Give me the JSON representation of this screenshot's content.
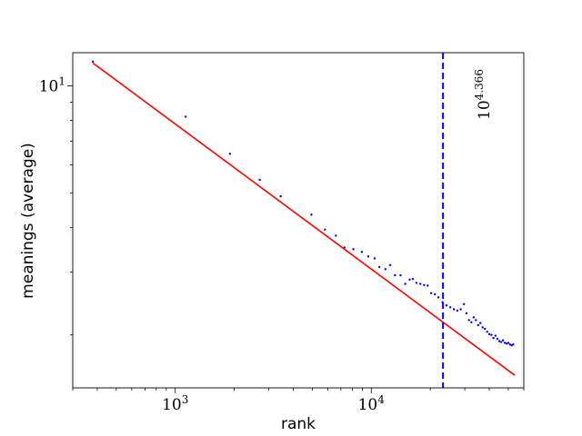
{
  "chart_data": {
    "type": "scatter",
    "xlabel": "rank",
    "ylabel": "meanings (average)",
    "x_scale": "log",
    "y_scale": "log",
    "xlim": [
      300,
      60000
    ],
    "ylim": [
      1.42,
      12.4
    ],
    "x_ticks": [
      {
        "value": 1000,
        "base": "10",
        "exp": "3"
      },
      {
        "value": 10000,
        "base": "10",
        "exp": "4"
      }
    ],
    "y_ticks": [
      {
        "value": 10,
        "base": "10",
        "exp": "1"
      }
    ],
    "annotation": {
      "base": "10",
      "exp": "4.366"
    },
    "vline": {
      "x": 23227,
      "color": "#0000ff",
      "style": "dashed"
    },
    "fit_line": {
      "x": [
        380,
        54000
      ],
      "y": [
        11.6,
        1.54
      ],
      "color": "#ff0000"
    },
    "series": [
      {
        "color": "#0000ff",
        "points": [
          [
            380,
            11.7
          ],
          [
            1130,
            8.2
          ],
          [
            1900,
            6.45
          ],
          [
            2700,
            5.45
          ],
          [
            3450,
            4.9
          ],
          [
            4950,
            4.35
          ],
          [
            5800,
            3.95
          ],
          [
            6600,
            3.8
          ],
          [
            7300,
            3.52
          ],
          [
            8100,
            3.48
          ],
          [
            8950,
            3.42
          ],
          [
            9650,
            3.32
          ],
          [
            10400,
            3.28
          ],
          [
            11000,
            3.1
          ],
          [
            11800,
            3.06
          ],
          [
            12500,
            3.14
          ],
          [
            13200,
            2.94
          ],
          [
            14100,
            2.94
          ],
          [
            14900,
            2.78
          ],
          [
            15700,
            2.86
          ],
          [
            16300,
            2.87
          ],
          [
            17000,
            2.8
          ],
          [
            17800,
            2.78
          ],
          [
            18600,
            2.76
          ],
          [
            19400,
            2.75
          ],
          [
            20200,
            2.62
          ],
          [
            21100,
            2.6
          ],
          [
            22000,
            2.55
          ],
          [
            23100,
            2.47
          ],
          [
            24200,
            2.42
          ],
          [
            25300,
            2.39
          ],
          [
            26400,
            2.36
          ],
          [
            27500,
            2.34
          ],
          [
            28600,
            2.36
          ],
          [
            29700,
            2.44
          ],
          [
            30600,
            2.3
          ],
          [
            31500,
            2.2
          ],
          [
            32400,
            2.17
          ],
          [
            33300,
            2.24
          ],
          [
            34200,
            2.2
          ],
          [
            35100,
            2.13
          ],
          [
            36000,
            2.16
          ],
          [
            37000,
            2.1
          ],
          [
            38000,
            2.08
          ],
          [
            39000,
            2.04
          ],
          [
            40000,
            2.01
          ],
          [
            41000,
            2.0
          ],
          [
            42000,
            1.96
          ],
          [
            43000,
            1.99
          ],
          [
            44000,
            1.95
          ],
          [
            45000,
            1.92
          ],
          [
            46000,
            1.91
          ],
          [
            47000,
            1.93
          ],
          [
            48000,
            1.9
          ],
          [
            49000,
            1.89
          ],
          [
            50000,
            1.9
          ],
          [
            51000,
            1.88
          ],
          [
            52000,
            1.87
          ],
          [
            53000,
            1.88
          ]
        ]
      }
    ]
  }
}
